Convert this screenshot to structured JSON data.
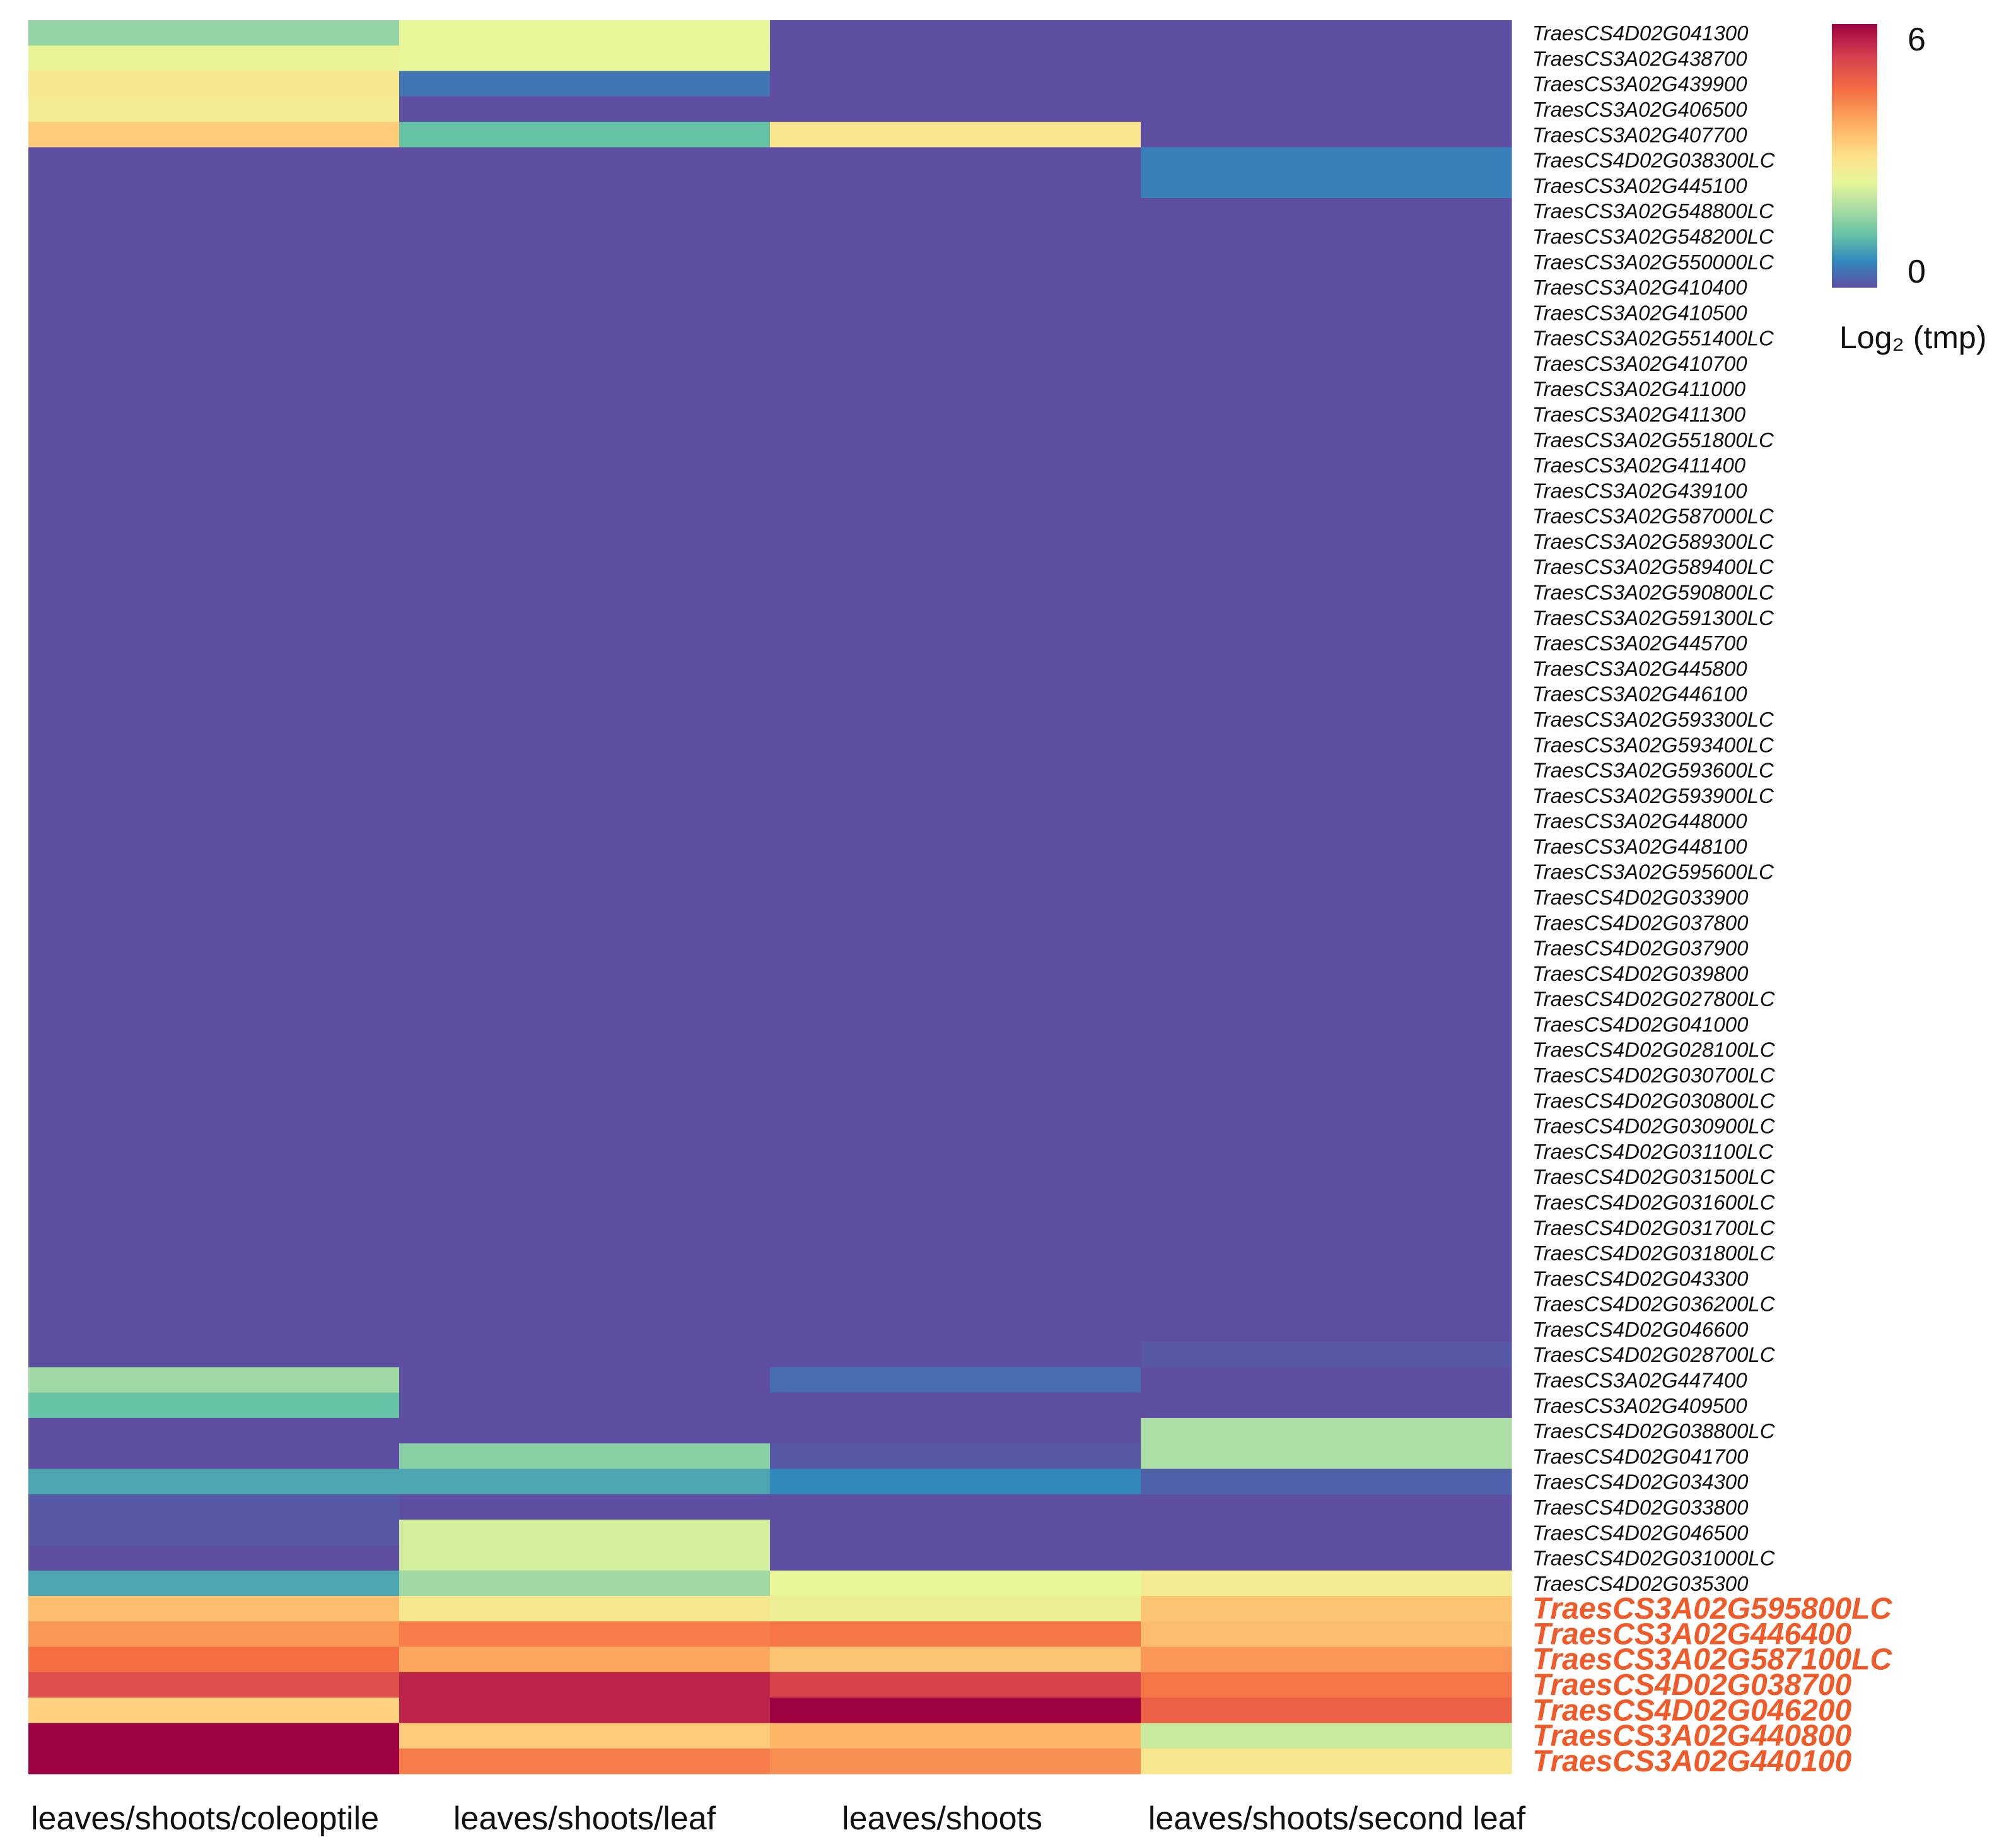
{
  "chart_data": {
    "type": "heatmap",
    "columns": [
      "leaves/shoots/coleoptile",
      "leaves/shoots/leaf",
      "leaves/shoots",
      "leaves/shoots/second leaf"
    ],
    "rows": [
      "TraesCS4D02G041300",
      "TraesCS3A02G438700",
      "TraesCS3A02G439900",
      "TraesCS3A02G406500",
      "TraesCS3A02G407700",
      "TraesCS4D02G038300LC",
      "TraesCS3A02G445100",
      "TraesCS3A02G548800LC",
      "TraesCS3A02G548200LC",
      "TraesCS3A02G550000LC",
      "TraesCS3A02G410400",
      "TraesCS3A02G410500",
      "TraesCS3A02G551400LC",
      "TraesCS3A02G410700",
      "TraesCS3A02G411000",
      "TraesCS3A02G411300",
      "TraesCS3A02G551800LC",
      "TraesCS3A02G411400",
      "TraesCS3A02G439100",
      "TraesCS3A02G587000LC",
      "TraesCS3A02G589300LC",
      "TraesCS3A02G589400LC",
      "TraesCS3A02G590800LC",
      "TraesCS3A02G591300LC",
      "TraesCS3A02G445700",
      "TraesCS3A02G445800",
      "TraesCS3A02G446100",
      "TraesCS3A02G593300LC",
      "TraesCS3A02G593400LC",
      "TraesCS3A02G593600LC",
      "TraesCS3A02G593900LC",
      "TraesCS3A02G448000",
      "TraesCS3A02G448100",
      "TraesCS3A02G595600LC",
      "TraesCS4D02G033900",
      "TraesCS4D02G037800",
      "TraesCS4D02G037900",
      "TraesCS4D02G039800",
      "TraesCS4D02G027800LC",
      "TraesCS4D02G041000",
      "TraesCS4D02G028100LC",
      "TraesCS4D02G030700LC",
      "TraesCS4D02G030800LC",
      "TraesCS4D02G030900LC",
      "TraesCS4D02G031100LC",
      "TraesCS4D02G031500LC",
      "TraesCS4D02G031600LC",
      "TraesCS4D02G031700LC",
      "TraesCS4D02G031800LC",
      "TraesCS4D02G043300",
      "TraesCS4D02G036200LC",
      "TraesCS4D02G046600",
      "TraesCS4D02G028700LC",
      "TraesCS3A02G447400",
      "TraesCS3A02G409500",
      "TraesCS4D02G038800LC",
      "TraesCS4D02G041700",
      "TraesCS4D02G034300",
      "TraesCS4D02G033800",
      "TraesCS4D02G046500",
      "TraesCS4D02G031000LC",
      "TraesCS4D02G035300",
      "TraesCS3A02G595800LC",
      "TraesCS3A02G446400",
      "TraesCS3A02G587100LC",
      "TraesCS4D02G038700",
      "TraesCS4D02G046200",
      "TraesCS3A02G440800",
      "TraesCS3A02G440100"
    ],
    "highlighted_rows": [
      "TraesCS3A02G595800LC",
      "TraesCS3A02G446400",
      "TraesCS3A02G587100LC",
      "TraesCS4D02G038700",
      "TraesCS4D02G046200",
      "TraesCS3A02G440800",
      "TraesCS3A02G440100"
    ],
    "highlight_color": "#f05a28",
    "values": [
      [
        1.6,
        2.4,
        0.0,
        0.0
      ],
      [
        2.5,
        2.4,
        0.0,
        0.0
      ],
      [
        2.8,
        0.4,
        0.0,
        0.0
      ],
      [
        2.7,
        0.0,
        0.0,
        0.0
      ],
      [
        3.3,
        1.2,
        2.9,
        0.0
      ],
      [
        0.0,
        0.0,
        0.0,
        0.5
      ],
      [
        0.0,
        0.0,
        0.0,
        0.5
      ],
      [
        0.0,
        0.0,
        0.0,
        0.0
      ],
      [
        0.0,
        0.0,
        0.0,
        0.0
      ],
      [
        0.0,
        0.0,
        0.0,
        0.0
      ],
      [
        0.0,
        0.0,
        0.0,
        0.0
      ],
      [
        0.0,
        0.0,
        0.0,
        0.0
      ],
      [
        0.0,
        0.0,
        0.0,
        0.0
      ],
      [
        0.0,
        0.0,
        0.0,
        0.0
      ],
      [
        0.0,
        0.0,
        0.0,
        0.0
      ],
      [
        0.0,
        0.0,
        0.0,
        0.0
      ],
      [
        0.0,
        0.0,
        0.0,
        0.0
      ],
      [
        0.0,
        0.0,
        0.0,
        0.0
      ],
      [
        0.0,
        0.0,
        0.0,
        0.0
      ],
      [
        0.0,
        0.0,
        0.0,
        0.0
      ],
      [
        0.0,
        0.0,
        0.0,
        0.0
      ],
      [
        0.0,
        0.0,
        0.0,
        0.0
      ],
      [
        0.0,
        0.0,
        0.0,
        0.0
      ],
      [
        0.0,
        0.0,
        0.0,
        0.0
      ],
      [
        0.0,
        0.0,
        0.0,
        0.0
      ],
      [
        0.0,
        0.0,
        0.0,
        0.0
      ],
      [
        0.0,
        0.0,
        0.0,
        0.0
      ],
      [
        0.0,
        0.0,
        0.0,
        0.0
      ],
      [
        0.0,
        0.0,
        0.0,
        0.0
      ],
      [
        0.0,
        0.0,
        0.0,
        0.0
      ],
      [
        0.0,
        0.0,
        0.0,
        0.0
      ],
      [
        0.0,
        0.0,
        0.0,
        0.0
      ],
      [
        0.0,
        0.0,
        0.0,
        0.0
      ],
      [
        0.0,
        0.0,
        0.0,
        0.0
      ],
      [
        0.0,
        0.0,
        0.0,
        0.0
      ],
      [
        0.0,
        0.0,
        0.0,
        0.0
      ],
      [
        0.0,
        0.0,
        0.0,
        0.0
      ],
      [
        0.0,
        0.0,
        0.0,
        0.0
      ],
      [
        0.0,
        0.0,
        0.0,
        0.0
      ],
      [
        0.0,
        0.0,
        0.0,
        0.0
      ],
      [
        0.0,
        0.0,
        0.0,
        0.0
      ],
      [
        0.0,
        0.0,
        0.0,
        0.0
      ],
      [
        0.0,
        0.0,
        0.0,
        0.0
      ],
      [
        0.0,
        0.0,
        0.0,
        0.0
      ],
      [
        0.0,
        0.0,
        0.0,
        0.0
      ],
      [
        0.0,
        0.0,
        0.0,
        0.0
      ],
      [
        0.0,
        0.0,
        0.0,
        0.0
      ],
      [
        0.0,
        0.0,
        0.0,
        0.0
      ],
      [
        0.0,
        0.0,
        0.0,
        0.0
      ],
      [
        0.0,
        0.0,
        0.0,
        0.0
      ],
      [
        0.0,
        0.0,
        0.0,
        0.0
      ],
      [
        0.0,
        0.0,
        0.0,
        0.0
      ],
      [
        0.0,
        0.0,
        0.0,
        0.1
      ],
      [
        1.7,
        0.0,
        0.3,
        0.0
      ],
      [
        1.2,
        0.0,
        0.0,
        0.0
      ],
      [
        0.0,
        0.0,
        0.0,
        1.8
      ],
      [
        0.0,
        1.5,
        0.1,
        1.8
      ],
      [
        0.9,
        0.9,
        0.6,
        0.2
      ],
      [
        0.1,
        0.0,
        0.0,
        0.0
      ],
      [
        0.1,
        2.2,
        0.0,
        0.0
      ],
      [
        0.0,
        2.2,
        0.0,
        0.0
      ],
      [
        0.9,
        1.7,
        2.4,
        2.7
      ],
      [
        3.5,
        2.8,
        2.6,
        3.4
      ],
      [
        4.0,
        4.3,
        4.4,
        3.5
      ],
      [
        4.5,
        3.8,
        3.4,
        4.0
      ],
      [
        5.0,
        5.6,
        5.2,
        4.4
      ],
      [
        3.2,
        5.6,
        6.2,
        4.7
      ],
      [
        6.2,
        3.3,
        3.6,
        2.1
      ],
      [
        6.2,
        4.3,
        4.1,
        2.8
      ]
    ],
    "colorbar": {
      "min": 0,
      "max": 6,
      "ticks": [
        "6",
        "0"
      ],
      "label": "Log₂ (tmp)"
    },
    "colormap": "Spectral (reversed)"
  }
}
